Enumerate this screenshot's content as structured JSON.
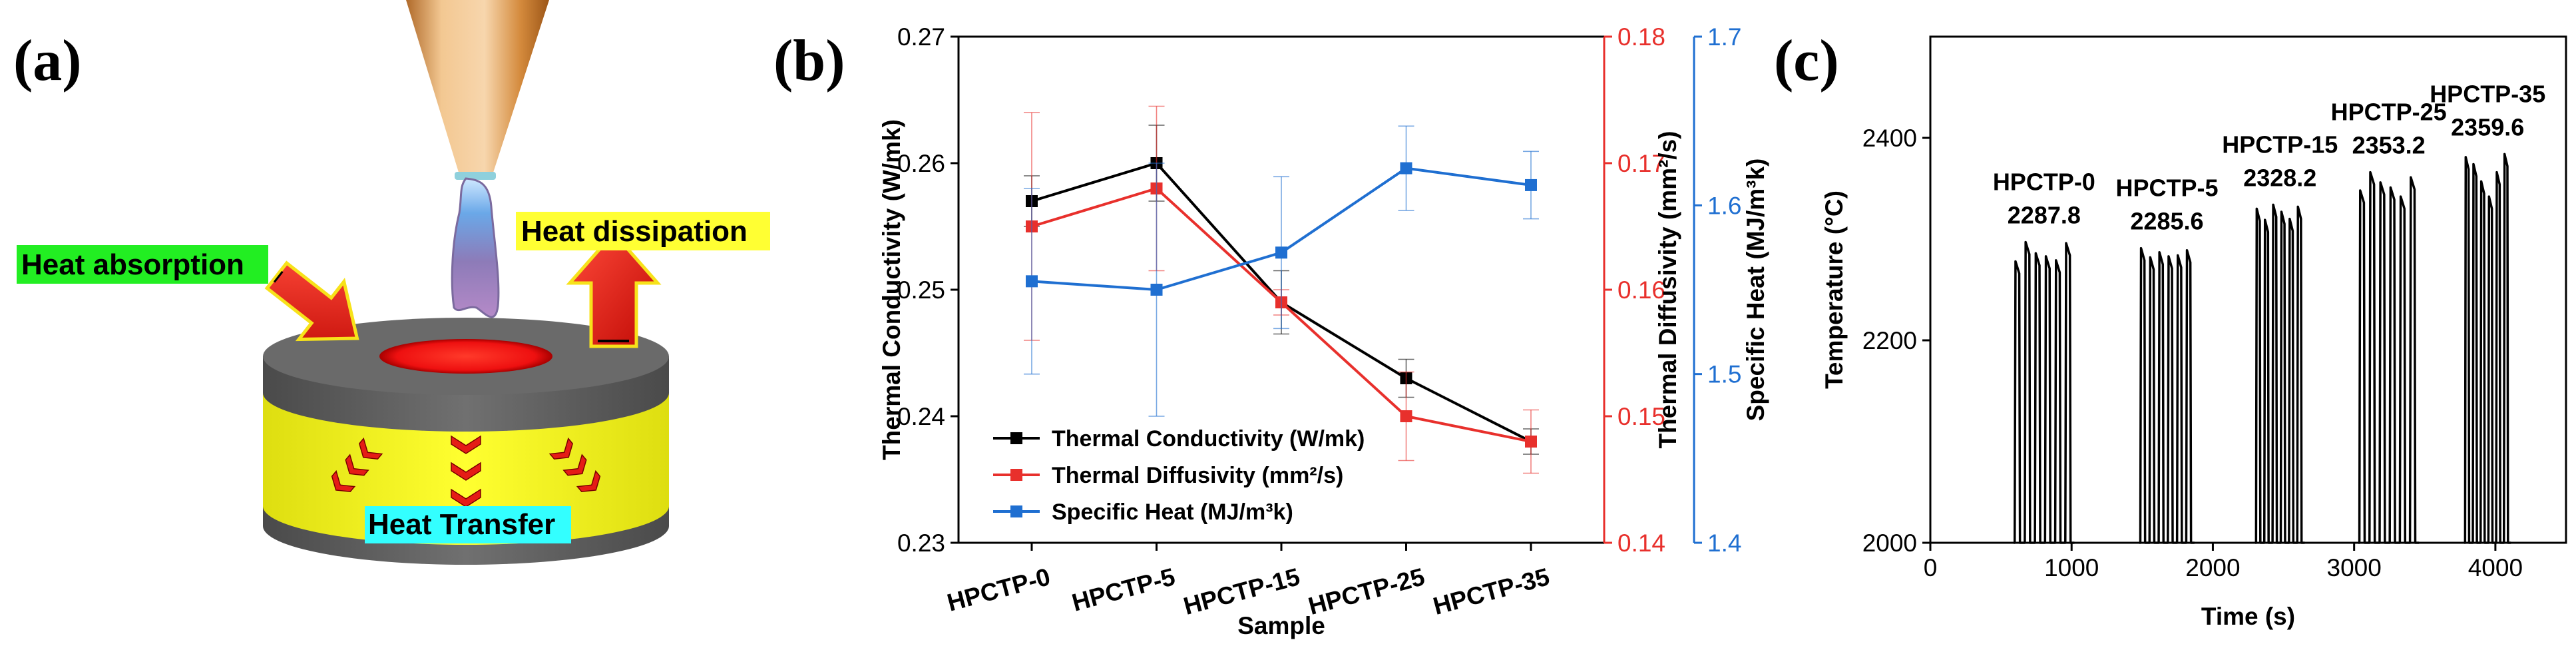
{
  "panels": {
    "a": {
      "label": "(a)",
      "texts": {
        "absorption": "Heat absorption",
        "dissipation": "Heat dissipation",
        "transfer": "Heat Transfer"
      },
      "colors": {
        "absorption_bg": "#22ee22",
        "dissipation_bg": "#ffff33",
        "transfer_bg": "#33ffff",
        "arrow": "#e51c16",
        "band": "#f4f417",
        "disk": "#5a5a5a"
      }
    },
    "b": {
      "label": "(b)"
    },
    "c": {
      "label": "(c)"
    }
  },
  "chart_data": [
    {
      "type": "line",
      "panel": "b",
      "categories": [
        "HPCTP-0",
        "HPCTP-5",
        "HPCTP-15",
        "HPCTP-25",
        "HPCTP-35"
      ],
      "xlabel": "Sample",
      "axes": [
        {
          "id": "left",
          "label": "Thermal Conductivity (W/mk)",
          "ylim": [
            0.23,
            0.27
          ],
          "ticks": [
            "0.23",
            "0.24",
            "0.25",
            "0.26",
            "0.27"
          ],
          "color": "#000000"
        },
        {
          "id": "right1",
          "label": "Thermal Diffusivity (mm²/s)",
          "ylim": [
            0.14,
            0.18
          ],
          "ticks": [
            "0.14",
            "0.15",
            "0.16",
            "0.17",
            "0.18"
          ],
          "color": "#e8302c"
        },
        {
          "id": "right2",
          "label": "Specific Heat (MJ/m³k)",
          "ylim": [
            1.4,
            1.7
          ],
          "ticks": [
            "1.4",
            "1.5",
            "1.6",
            "1.7"
          ],
          "color": "#1f6fd1"
        }
      ],
      "series": [
        {
          "name": "Thermal Conductivity (W/mk)",
          "axis": "left",
          "color": "#000000",
          "values": [
            0.257,
            0.26,
            0.249,
            0.243,
            0.238
          ],
          "errors": [
            0.002,
            0.003,
            0.0025,
            0.0015,
            0.001
          ]
        },
        {
          "name": "Thermal Diffusivity (mm²/s)",
          "axis": "right1",
          "color": "#e8302c",
          "values": [
            0.165,
            0.168,
            0.159,
            0.15,
            0.148
          ],
          "errors": [
            0.009,
            0.0065,
            0.001,
            0.0035,
            0.0025
          ]
        },
        {
          "name": "Specific Heat (MJ/m³k)",
          "axis": "right2",
          "color": "#1f6fd1",
          "values": [
            1.555,
            1.55,
            1.572,
            1.622,
            1.612
          ],
          "errors": [
            0.055,
            0.075,
            0.045,
            0.025,
            0.02
          ]
        }
      ]
    },
    {
      "type": "line",
      "panel": "c",
      "xlabel": "Time (s)",
      "ylabel": "Temperature (°C)",
      "xlim": [
        0,
        4500
      ],
      "ylim": [
        2000,
        2500
      ],
      "xticks": [
        "0",
        "1000",
        "2000",
        "3000",
        "4000"
      ],
      "yticks": [
        "2000",
        "2200",
        "2400"
      ],
      "color": "#000000",
      "groups": [
        {
          "name": "HPCTP-0",
          "value_label": "2287.8",
          "start": 590,
          "end": 1020,
          "peaks": [
            2278,
            2297,
            2286,
            2283,
            2279,
            2296
          ]
        },
        {
          "name": "HPCTP-5",
          "value_label": "2285.6",
          "start": 1480,
          "end": 1870,
          "peaks": [
            2291,
            2282,
            2287,
            2283,
            2284,
            2289
          ]
        },
        {
          "name": "HPCTP-15",
          "value_label": "2328.2",
          "start": 2300,
          "end": 2650,
          "peaks": [
            2330,
            2319,
            2334,
            2327,
            2320,
            2332
          ]
        },
        {
          "name": "HPCTP-25",
          "value_label": "2353.2",
          "start": 3030,
          "end": 3460,
          "peaks": [
            2348,
            2366,
            2356,
            2351,
            2342,
            2361
          ]
        },
        {
          "name": "HPCTP-35",
          "value_label": "2359.6",
          "start": 3780,
          "end": 4110,
          "peaks": [
            2381,
            2374,
            2357,
            2342,
            2366,
            2384
          ]
        }
      ]
    }
  ]
}
